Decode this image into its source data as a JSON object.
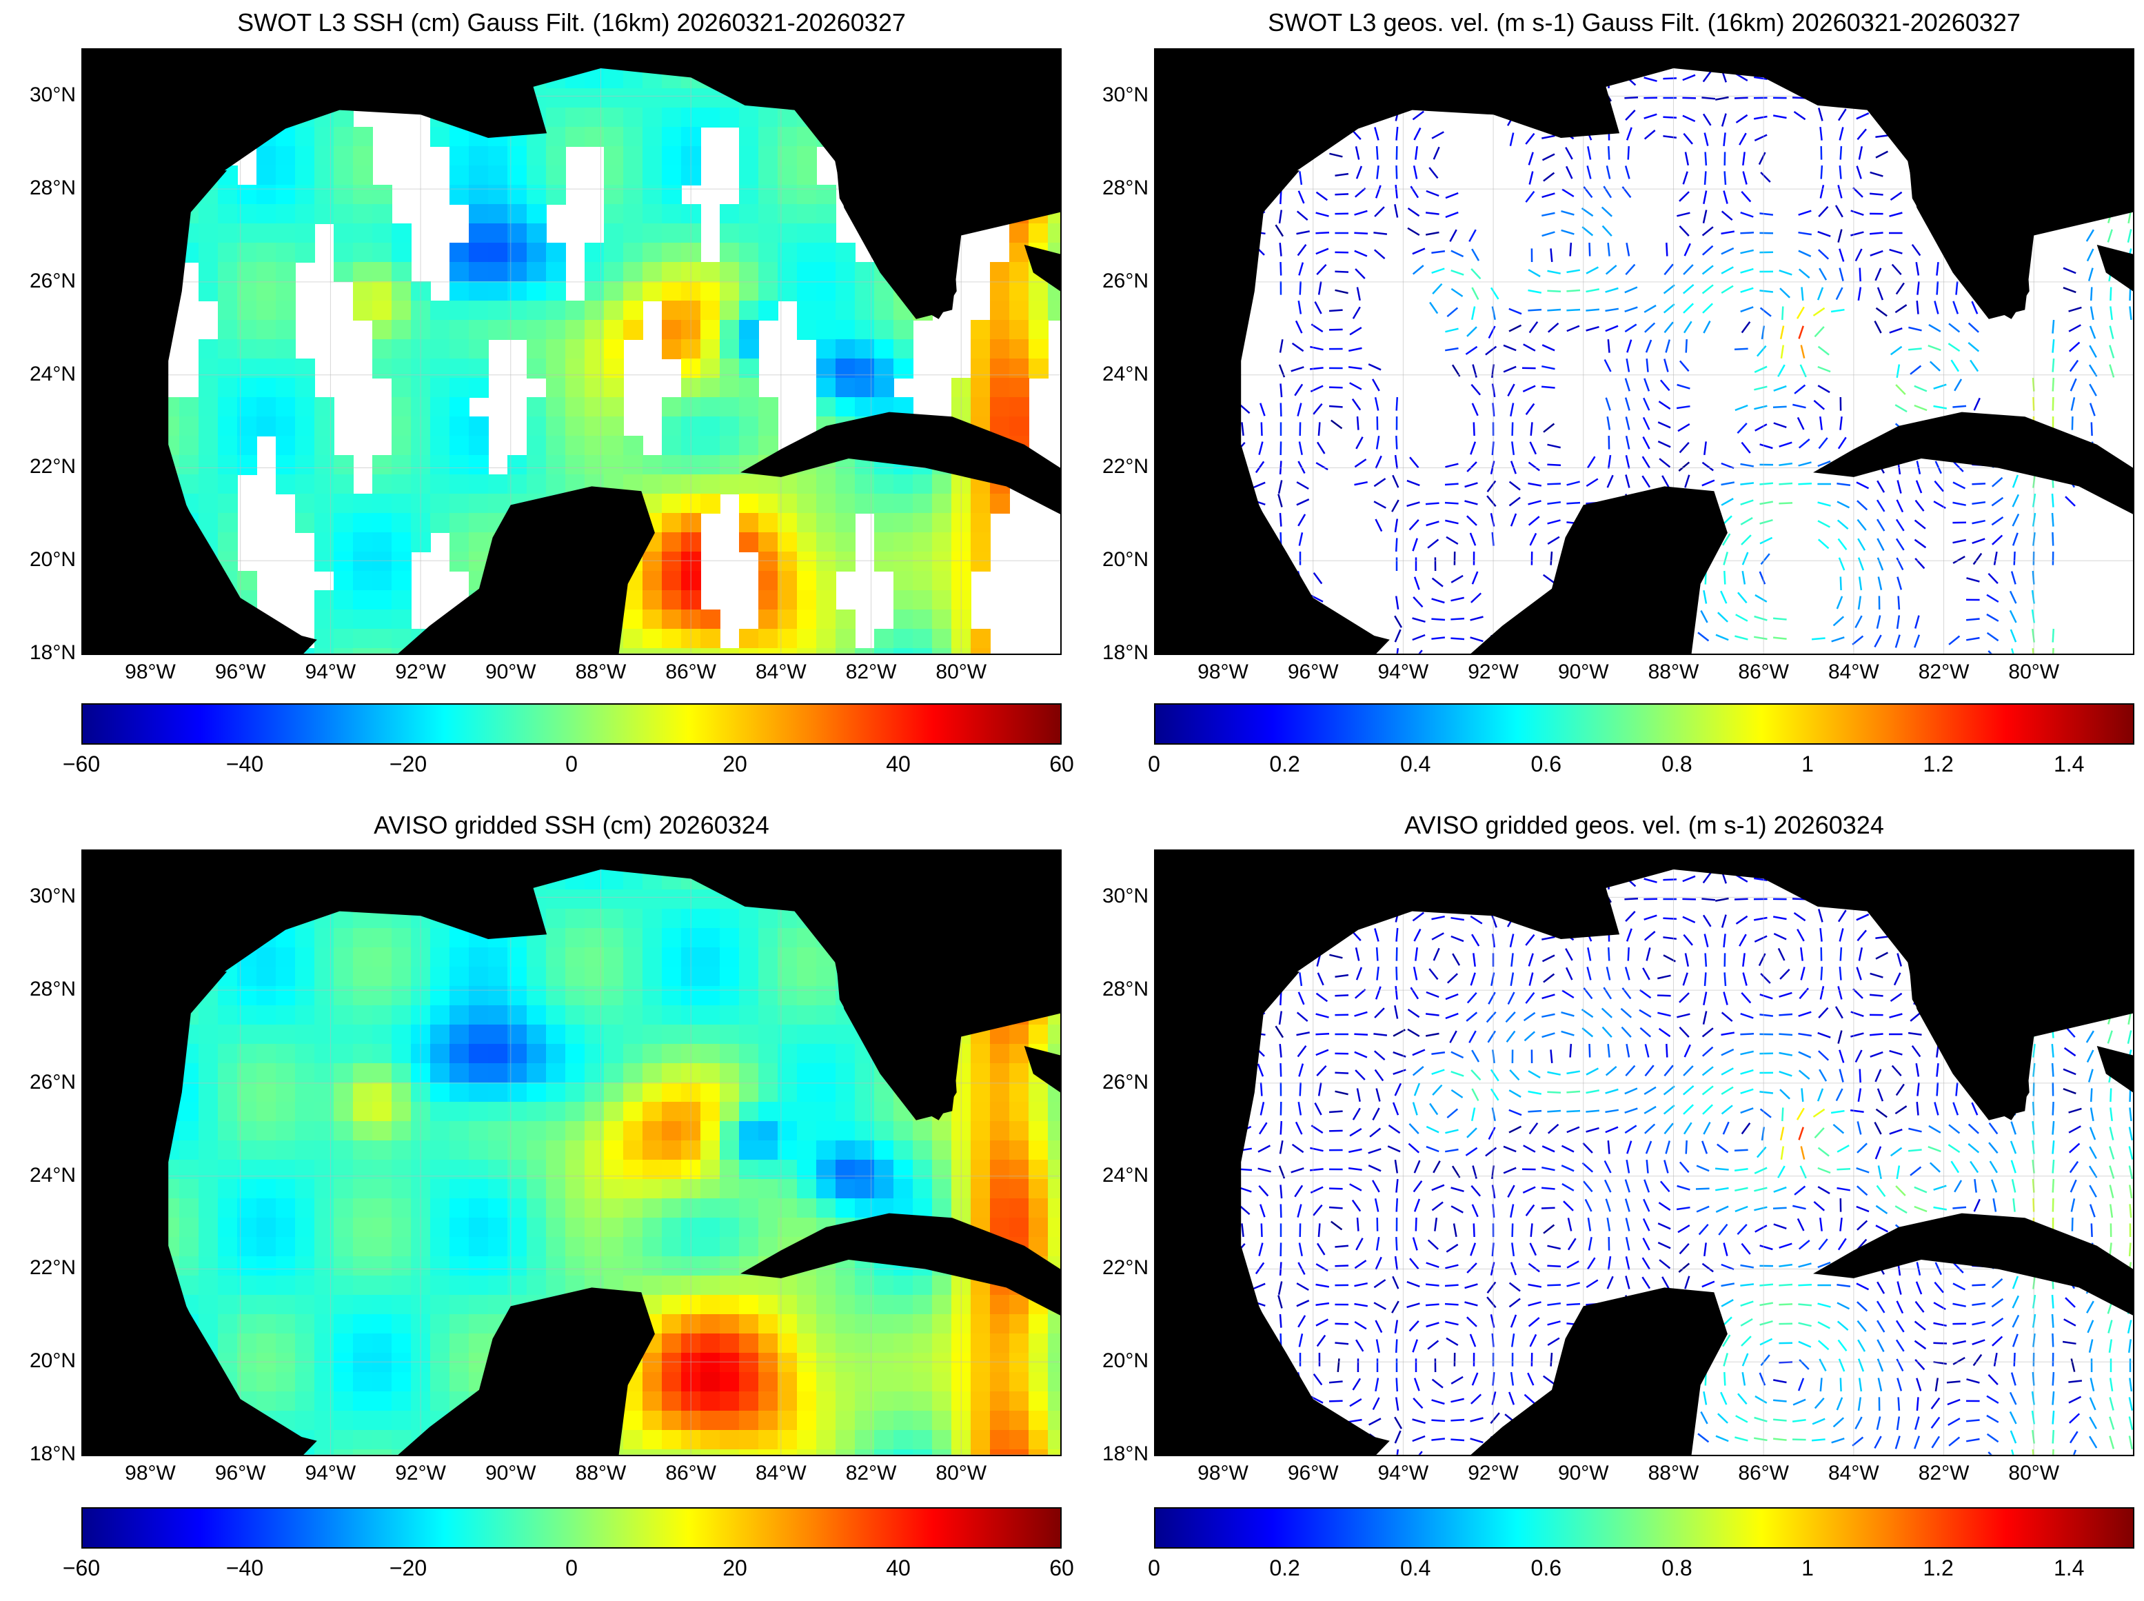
{
  "panels": [
    {
      "id": "swot-ssh",
      "title": "SWOT L3 SSH (cm) Gauss Filt. (16km) 20260321-20260327",
      "colorbar_ticks": [
        "−60",
        "−40",
        "−20",
        "0",
        "20",
        "40",
        "60"
      ],
      "kind": "ssh-swaths"
    },
    {
      "id": "swot-vel",
      "title": "SWOT L3 geos. vel. (m s-1) Gauss Filt. (16km) 20260321-20260327",
      "colorbar_ticks": [
        "0",
        "0.2",
        "0.4",
        "0.6",
        "0.8",
        "1",
        "1.2",
        "1.4"
      ],
      "kind": "vel-swaths"
    },
    {
      "id": "aviso-ssh",
      "title": "AVISO gridded SSH (cm) 20260324",
      "colorbar_ticks": [
        "−60",
        "−40",
        "−20",
        "0",
        "20",
        "40",
        "60"
      ],
      "kind": "ssh-full"
    },
    {
      "id": "aviso-vel",
      "title": "AVISO gridded geos. vel. (m s-1)  20260324",
      "colorbar_ticks": [
        "0",
        "0.2",
        "0.4",
        "0.6",
        "0.8",
        "1",
        "1.2",
        "1.4"
      ],
      "kind": "vel-full"
    }
  ],
  "lat_ticks": [
    "30°N",
    "28°N",
    "26°N",
    "24°N",
    "22°N",
    "20°N",
    "18°N"
  ],
  "lon_ticks": [
    "98°W",
    "96°W",
    "94°W",
    "92°W",
    "90°W",
    "88°W",
    "86°W",
    "84°W",
    "82°W",
    "80°W"
  ],
  "colors": {
    "land": "#000000",
    "ocean_nodata": "#ffffff",
    "grid": "#bbbbbb"
  }
}
